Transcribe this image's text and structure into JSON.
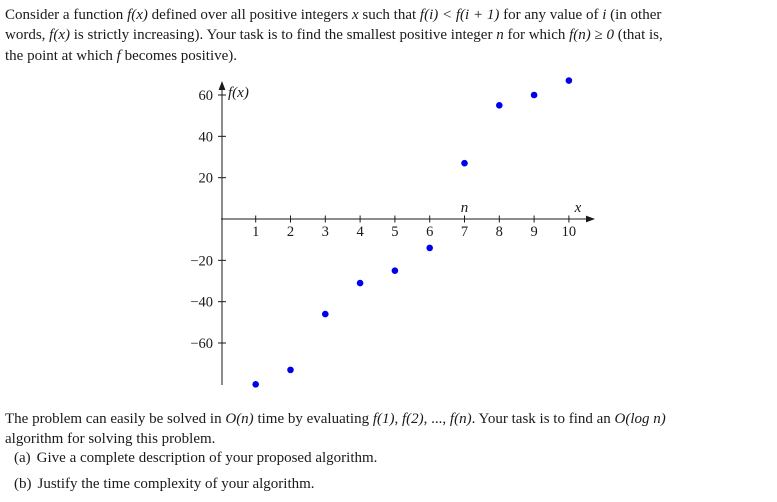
{
  "page": {
    "background": "#ffffff",
    "text_color": "#1a1a1a"
  },
  "intro": {
    "lines": [
      [
        {
          "text": "Consider a function ",
          "math": false
        },
        {
          "text": "f(x)",
          "math": true
        },
        {
          "text": " defined over all positive integers ",
          "math": false
        },
        {
          "text": "x",
          "math": true
        },
        {
          "text": " such that ",
          "math": false
        },
        {
          "text": "f(i) < f(i + 1)",
          "math": true
        },
        {
          "text": " for any value of ",
          "math": false
        },
        {
          "text": "i",
          "math": true
        },
        {
          "text": " (in other",
          "math": false
        }
      ],
      [
        {
          "text": "words, ",
          "math": false
        },
        {
          "text": "f(x)",
          "math": true
        },
        {
          "text": " is strictly increasing). Your task is to find the smallest positive integer ",
          "math": false
        },
        {
          "text": "n",
          "math": true
        },
        {
          "text": " for which ",
          "math": false
        },
        {
          "text": "f(n) ≥ 0",
          "math": true
        },
        {
          "text": " (that is,",
          "math": false
        }
      ],
      [
        {
          "text": "the point at which ",
          "math": false
        },
        {
          "text": "f",
          "math": true
        },
        {
          "text": " becomes positive).",
          "math": false
        }
      ]
    ]
  },
  "chart_data": {
    "type": "scatter",
    "title": "",
    "x": [
      1,
      2,
      3,
      4,
      5,
      6,
      7,
      8,
      9,
      10
    ],
    "values": [
      -80,
      -73,
      -46,
      -31,
      -25,
      -14,
      27,
      55,
      60,
      67
    ],
    "x_ticks": [
      1,
      2,
      3,
      4,
      5,
      6,
      7,
      8,
      9,
      10
    ],
    "y_ticks": [
      60,
      40,
      20,
      -20,
      -40,
      -60
    ],
    "xlabel": "x",
    "ylabel": "f(x)",
    "annotation": {
      "label": "n",
      "x": 7
    },
    "point_color": "#0000ee",
    "axis_color": "#1a1a1a",
    "xlim": [
      0,
      10.8
    ],
    "ylim": [
      -85,
      70
    ],
    "grid": false,
    "legend": null
  },
  "outro": {
    "lines": [
      [
        {
          "text": "The problem can easily be solved in ",
          "math": false
        },
        {
          "text": "O(n)",
          "math": true
        },
        {
          "text": " time by evaluating ",
          "math": false
        },
        {
          "text": "f(1)",
          "math": true
        },
        {
          "text": ", ",
          "math": false
        },
        {
          "text": "f(2)",
          "math": true
        },
        {
          "text": ", ..., ",
          "math": false
        },
        {
          "text": "f(n)",
          "math": true
        },
        {
          "text": ". Your task is to find an ",
          "math": false
        },
        {
          "text": "O(log n)",
          "math": true
        }
      ],
      [
        {
          "text": "algorithm for solving this problem.",
          "math": false
        }
      ]
    ]
  },
  "items": [
    {
      "label": "(a)",
      "text": "Give a complete description of your proposed algorithm."
    },
    {
      "label": "(b)",
      "text": "Justify the time complexity of your algorithm."
    }
  ]
}
